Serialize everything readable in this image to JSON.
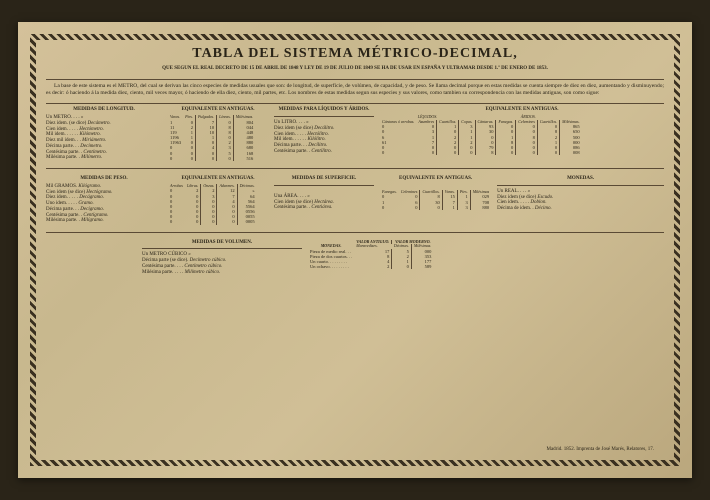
{
  "title": "TABLA DEL SISTEMA MÉTRICO-DECIMAL,",
  "subtitle": "QUE SEGUN EL REAL DECRETO DE 15 DE ABRIL DE 1848 Y LEY DE 19 DE JULIO DE 1849 SE HA DE USAR EN ESPAÑA Y ULTRAMAR DESDE 1.º DE ENERO DE 1853.",
  "intro": "La base de este sistema es el METRO, del cual se derivan las cinco especies de medidas usuales que son: de longitud, de superficie, de volúmen, de capacidad, y de peso. Se llama decimal porque en estas medidas se cuenta siempre de diez en diez, aumentando y disminuyendo; es decir: ó haciendo á la medida diez, ciento, mil veces mayor, ó haciendo de ella diez, ciento, mil partes, etc. Los nombres de estas medidas segun sus especies y sus valores, como tambien su correspondencia con las medidas antiguas, son como sigue:",
  "longitud": {
    "title": "MEDIDAS DE LONGITUD.",
    "eq_title": "EQUIVALENTE EN ANTIGUAS.",
    "headers": [
      "Varas.",
      "Pies.",
      "Pulgadas.",
      "Líneas.",
      "Milésimas."
    ],
    "rows": [
      {
        "label": "Un METRO. . . .",
        "n": "»",
        "v": [
          "1",
          "0",
          "7",
          "0",
          "804"
        ]
      },
      {
        "label": "Diez idem. (se dice)",
        "n": "Decámetro.",
        "v": [
          "11",
          "2",
          "10",
          "8",
          "044"
        ]
      },
      {
        "label": "Cien idem. . . . .",
        "n": "Hectómetro.",
        "v": [
          "119",
          "1",
          "10",
          "8",
          "448"
        ]
      },
      {
        "label": "Mil idem. . . . . .",
        "n": "Kilómetro.",
        "v": [
          "1196",
          "1",
          "1",
          "0",
          "480"
        ]
      },
      {
        "label": "Diez mil idem. . .",
        "n": "Miriámetro.",
        "v": [
          "11963",
          "0",
          "0",
          "2",
          "880"
        ]
      },
      {
        "label": "Décima parte. . .",
        "n": "Decímetro.",
        "v": [
          "0",
          "0",
          "4",
          "3",
          "680"
        ]
      },
      {
        "label": "Centésima parte. .",
        "n": "Centímetro.",
        "v": [
          "0",
          "0",
          "0",
          "5",
          "168"
        ]
      },
      {
        "label": "Milésima parte. .",
        "n": "Milímetro.",
        "v": [
          "0",
          "0",
          "0",
          "0",
          "516"
        ]
      }
    ]
  },
  "liquidos": {
    "title": "MEDIDAS PARA LÍQUIDOS Y ÁRIDOS.",
    "rows": [
      {
        "label": "Un LITRO. . . .",
        "n": "»"
      },
      {
        "label": "Diez idem (se dice)",
        "n": "Decálitro."
      },
      {
        "label": "Cien idem. . . . .",
        "n": "Hectólitro."
      },
      {
        "label": "Mil idem. . . . . .",
        "n": "Kilólitro."
      },
      {
        "label": "Décima parte. . .",
        "n": "Decílitro."
      },
      {
        "label": "Centésima parte. .",
        "n": "Centílitro."
      }
    ]
  },
  "liq_eq": {
    "title": "EQUIVALENTE EN ANTIGUAS.",
    "sub1": "LÍQUIDOS.",
    "sub2": "ÁRIDOS.",
    "h1": [
      "Cántaras ó arrobas.",
      "Azumbres",
      "Cuartillos.",
      "Copas."
    ],
    "h2": [
      "Cántaras.",
      "Fanegas.",
      "Celemines",
      "Cuartillos.",
      "Milésimas."
    ],
    "rows": [
      {
        "v1": [
          "0",
          "0",
          "1",
          "3"
        ],
        "v2": [
          "93",
          "0",
          "0",
          "0",
          "865"
        ]
      },
      {
        "v1": [
          "0",
          "3",
          "0",
          "1"
        ],
        "v2": [
          "30",
          "0",
          "0",
          "8",
          "650"
        ]
      },
      {
        "v1": [
          "6",
          "1",
          "2",
          "1"
        ],
        "v2": [
          "0",
          "1",
          "8",
          "2",
          "500"
        ]
      },
      {
        "v1": [
          "61",
          "7",
          "2",
          "2"
        ],
        "v2": [
          "0",
          "8",
          "0",
          "1",
          "000"
        ]
      },
      {
        "v1": [
          "0",
          "0",
          "0",
          "0"
        ],
        "v2": [
          "79",
          "0",
          "0",
          "0",
          "086"
        ]
      },
      {
        "v1": [
          "0",
          "0",
          "0",
          "0"
        ],
        "v2": [
          "8",
          "0",
          "0",
          "0",
          "008"
        ]
      }
    ]
  },
  "peso": {
    "title": "MEDIDAS DE PESO.",
    "eq_title": "EQUIVALENTE EN ANTIGUAS.",
    "headers": [
      "Arrobas",
      "Libras.",
      "Onzas.",
      "Adarmes.",
      "Décimas."
    ],
    "rows": [
      {
        "label": "Mil GRAMOS.",
        "n": "Kilógramo.",
        "v": [
          "0",
          "2",
          "2",
          "12",
          "»"
        ]
      },
      {
        "label": "Cien idem (se dice)",
        "n": "Hectógramo.",
        "v": [
          "0",
          "0",
          "3",
          "7",
          "64"
        ]
      },
      {
        "label": "Diez idem. . . . .",
        "n": "Decágramo.",
        "v": [
          "0",
          "0",
          "0",
          "4",
          "564"
        ]
      },
      {
        "label": "Uno idem. . . . .",
        "n": "Gramo.",
        "v": [
          "0",
          "0",
          "0",
          "0",
          "5564"
        ]
      },
      {
        "label": "Décima parte. . .",
        "n": "Decígramo.",
        "v": [
          "0",
          "0",
          "0",
          "0",
          "0556"
        ]
      },
      {
        "label": "Centésima parte. .",
        "n": "Centígramo.",
        "v": [
          "0",
          "0",
          "0",
          "0",
          "0055"
        ]
      },
      {
        "label": "Milésima parte. .",
        "n": "Milígramo.",
        "v": [
          "0",
          "0",
          "0",
          "0",
          "0005"
        ]
      }
    ]
  },
  "superficie": {
    "title": "MEDIDAS DE SUPERFICIE.",
    "rows": [
      {
        "label": "Una ÁREA. . . .",
        "n": "»"
      },
      {
        "label": "Cien idem (se dice)",
        "n": "Hectárea."
      },
      {
        "label": "Centésima parte. .",
        "n": "Centiárea."
      }
    ]
  },
  "sup_eq": {
    "title": "EQUIVALENTE EN ANTIGUAS.",
    "headers": [
      "Fanegas.",
      "Celemines",
      "Cuartillos.",
      "Varas.",
      "Pies.",
      "Milésimas"
    ],
    "rows": [
      {
        "v": [
          "0",
          "0",
          "8",
          "15",
          "1",
          "029"
        ]
      },
      {
        "v": [
          "1",
          "6",
          "30",
          "7",
          "3",
          "708"
        ]
      },
      {
        "v": [
          "0",
          "0",
          "0",
          "1",
          "3",
          "880"
        ]
      }
    ]
  },
  "monedas": {
    "title": "MONEDAS.",
    "rows": [
      {
        "label": "Un REAL. . . .",
        "n": "»"
      },
      {
        "label": "Diez idem (se dice)",
        "n": "Escudo."
      },
      {
        "label": "Cien idem. . . . .",
        "n": "Doblon."
      },
      {
        "label": "Décima de idem. .",
        "n": "Décimo."
      }
    ]
  },
  "volumen": {
    "title": "MEDIDAS DE VOLUMEN.",
    "rows": [
      {
        "label": "Un METRO CÚBICO",
        "n": "»"
      },
      {
        "label": "Décima parte (se dice).",
        "n": "Decímetro cúbico."
      },
      {
        "label": "Centésima parte. . . .",
        "n": "Centímetro cúbico."
      },
      {
        "label": "Milésima parte. . . . .",
        "n": "Milímetro cúbico."
      }
    ]
  },
  "mon_val": {
    "t1": "MONEDAS.",
    "t2": "VALOR ANTIGUO.",
    "t3": "VALOR MODERNO.",
    "h2": [
      "Maravedises."
    ],
    "h3": [
      "Décimas.",
      "Milésimas."
    ],
    "rows": [
      {
        "label": "Pieza de medio real. . .",
        "v2": [
          "17"
        ],
        "v3": [
          "5",
          "000"
        ]
      },
      {
        "label": "Pieza de dos cuartos. . .",
        "v2": [
          "8"
        ],
        "v3": [
          "2",
          "353"
        ]
      },
      {
        "label": "Un cuarto. . . . . . . . .",
        "v2": [
          "4"
        ],
        "v3": [
          "1",
          "177"
        ]
      },
      {
        "label": "Un ochavo. . . . . . . . .",
        "v2": [
          "2"
        ],
        "v3": [
          "0",
          "589"
        ]
      }
    ]
  },
  "footer": "Madrid. 1852. Imprenta de José Marés, Relatores, 17.",
  "colors": {
    "paper": "#c8b88e",
    "ink": "#2a2418",
    "bg": "#2a2418"
  }
}
